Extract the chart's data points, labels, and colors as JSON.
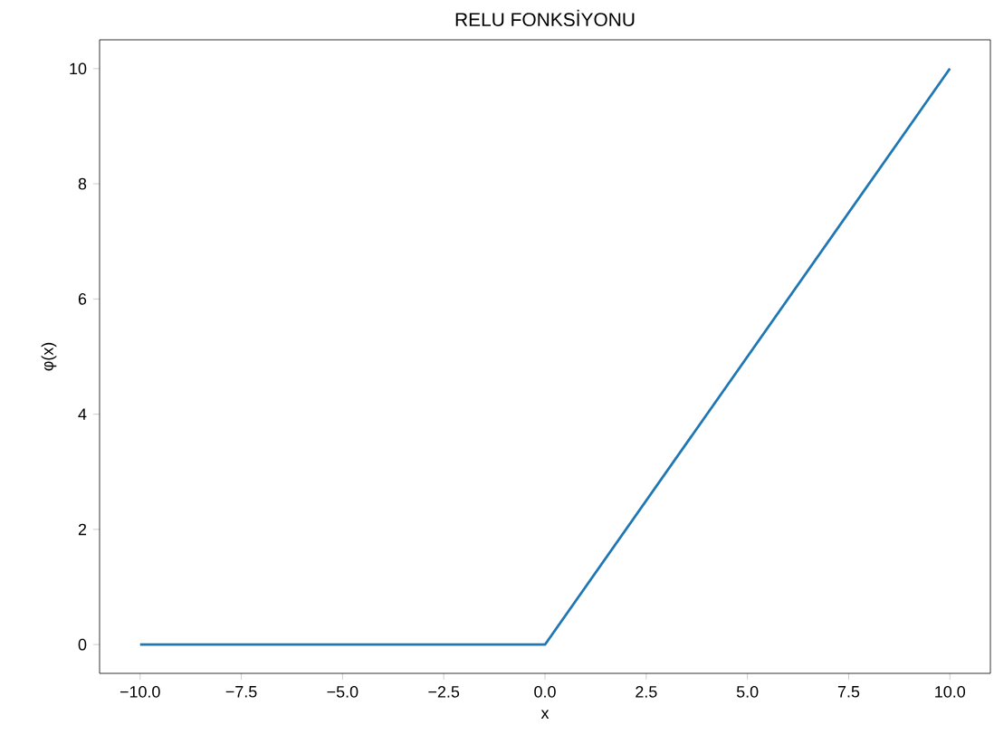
{
  "chart_data": {
    "type": "line",
    "title": "RELU FONKSİYONU",
    "xlabel": "x",
    "ylabel": "φ(x)",
    "x": [
      -10,
      0,
      10
    ],
    "values": [
      0,
      0,
      10
    ],
    "color": "#1f77b4",
    "xlim": [
      -11,
      11
    ],
    "ylim": [
      -0.5,
      10.5
    ],
    "xticks": [
      {
        "value": -10,
        "label": "−10.0"
      },
      {
        "value": -7.5,
        "label": "−7.5"
      },
      {
        "value": -5,
        "label": "−5.0"
      },
      {
        "value": -2.5,
        "label": "−2.5"
      },
      {
        "value": 0,
        "label": "0.0"
      },
      {
        "value": 2.5,
        "label": "2.5"
      },
      {
        "value": 5,
        "label": "5.0"
      },
      {
        "value": 7.5,
        "label": "7.5"
      },
      {
        "value": 10,
        "label": "10.0"
      }
    ],
    "yticks": [
      0,
      2,
      4,
      6,
      8,
      10
    ]
  }
}
